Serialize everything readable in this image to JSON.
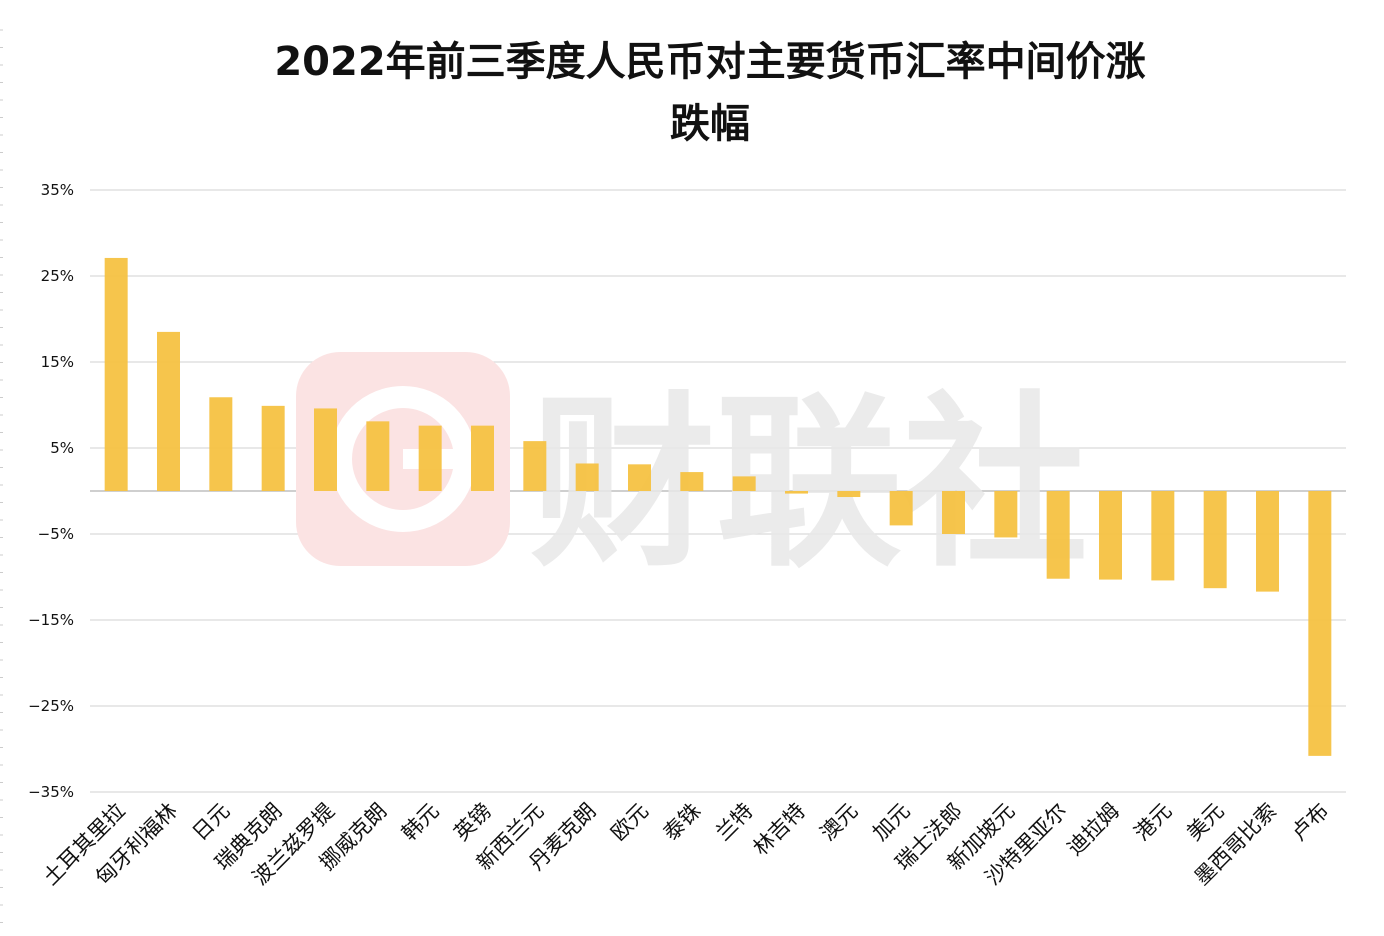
{
  "title_line1": "2022年前三季度人民币对主要货币汇率中间价涨",
  "title_line2": "跌幅",
  "watermark_text": "财联社",
  "colors": {
    "bar": "#F5C242",
    "grid": "#D9D9D9",
    "axis": "#BFBFBF",
    "text": "#111111",
    "watermark": "#E8E8E8",
    "watermark_logo": "#FBE3E3"
  },
  "chart_data": {
    "type": "bar",
    "title": "2022年前三季度人民币对主要货币汇率中间价涨跌幅",
    "xlabel": "",
    "ylabel": "",
    "ylim": [
      -35,
      35
    ],
    "yticks": [
      35,
      25,
      15,
      5,
      -5,
      -15,
      -25,
      -35
    ],
    "ytick_labels": [
      "35%",
      "25%",
      "15%",
      "5%",
      "−5%",
      "−15%",
      "−25%",
      "−35%"
    ],
    "grid": true,
    "legend": "none",
    "categories": [
      "土耳其里拉",
      "匈牙利福林",
      "日元",
      "瑞典克朗",
      "波兰兹罗提",
      "挪威克朗",
      "韩元",
      "英镑",
      "新西兰元",
      "丹麦克朗",
      "欧元",
      "泰铢",
      "兰特",
      "林吉特",
      "澳元",
      "加元",
      "瑞士法郎",
      "新加坡元",
      "沙特里亚尔",
      "迪拉姆",
      "港元",
      "美元",
      "墨西哥比索",
      "卢布"
    ],
    "values": [
      27.1,
      18.5,
      10.9,
      9.9,
      9.6,
      8.1,
      7.6,
      7.6,
      5.8,
      3.2,
      3.1,
      2.2,
      1.7,
      -0.3,
      -0.7,
      -4.0,
      -5.0,
      -5.4,
      -10.2,
      -10.3,
      -10.4,
      -11.3,
      -11.7,
      -30.8
    ]
  }
}
